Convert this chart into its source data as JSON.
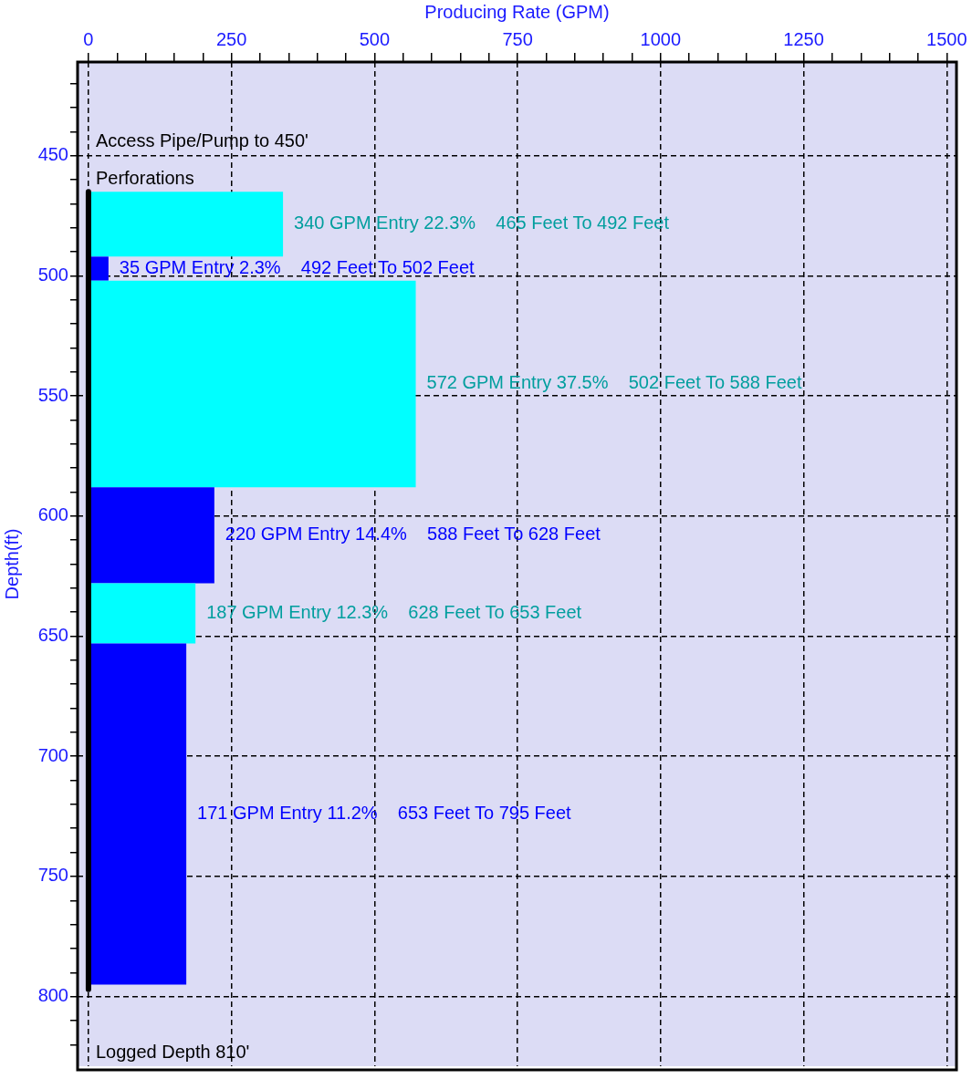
{
  "chart_data": {
    "type": "histogram",
    "orientation": "horizontal",
    "xlabel": "Producing Rate (GPM)",
    "ylabel": "Depth(ft)",
    "xlim": [
      -19,
      1517
    ],
    "ylim": [
      829,
      411
    ],
    "xticks": [
      0,
      {
        "value": 50,
        "label": null
      },
      {
        "value": 100,
        "label": null
      },
      {
        "value": 150,
        "label": null
      },
      {
        "value": 200,
        "label": null
      },
      250,
      {
        "value": 300,
        "label": null
      },
      {
        "value": 350,
        "label": null
      },
      {
        "value": 400,
        "label": null
      },
      {
        "value": 450,
        "label": null
      },
      500,
      {
        "value": 550,
        "label": null
      },
      {
        "value": 600,
        "label": null
      },
      {
        "value": 650,
        "label": null
      },
      {
        "value": 700,
        "label": null
      },
      750,
      {
        "value": 800,
        "label": null
      },
      {
        "value": 850,
        "label": null
      },
      {
        "value": 900,
        "label": null
      },
      {
        "value": 950,
        "label": null
      },
      1000,
      {
        "value": 1050,
        "label": null
      },
      {
        "value": 1100,
        "label": null
      },
      {
        "value": 1150,
        "label": null
      },
      {
        "value": 1200,
        "label": null
      },
      1250,
      {
        "value": 1300,
        "label": null
      },
      {
        "value": 1350,
        "label": null
      },
      {
        "value": 1400,
        "label": null
      },
      {
        "value": 1450,
        "label": null
      },
      1500
    ],
    "yticks": [
      {
        "value": 420,
        "label": null
      },
      {
        "value": 430,
        "label": null
      },
      {
        "value": 440,
        "label": null
      },
      450,
      {
        "value": 460,
        "label": null
      },
      {
        "value": 470,
        "label": null
      },
      {
        "value": 480,
        "label": null
      },
      {
        "value": 490,
        "label": null
      },
      500,
      {
        "value": 510,
        "label": null
      },
      {
        "value": 520,
        "label": null
      },
      {
        "value": 530,
        "label": null
      },
      {
        "value": 540,
        "label": null
      },
      550,
      {
        "value": 560,
        "label": null
      },
      {
        "value": 570,
        "label": null
      },
      {
        "value": 580,
        "label": null
      },
      {
        "value": 590,
        "label": null
      },
      600,
      {
        "value": 610,
        "label": null
      },
      {
        "value": 620,
        "label": null
      },
      {
        "value": 630,
        "label": null
      },
      {
        "value": 640,
        "label": null
      },
      650,
      {
        "value": 660,
        "label": null
      },
      {
        "value": 670,
        "label": null
      },
      {
        "value": 680,
        "label": null
      },
      {
        "value": 690,
        "label": null
      },
      700,
      {
        "value": 710,
        "label": null
      },
      {
        "value": 720,
        "label": null
      },
      {
        "value": 730,
        "label": null
      },
      {
        "value": 740,
        "label": null
      },
      750,
      {
        "value": 760,
        "label": null
      },
      {
        "value": 770,
        "label": null
      },
      {
        "value": 780,
        "label": null
      },
      {
        "value": 790,
        "label": null
      },
      800,
      {
        "value": 810,
        "label": null
      },
      {
        "value": 820,
        "label": null
      }
    ],
    "grid": true,
    "legend": false,
    "series": [
      {
        "type": "histogram",
        "bins": [
          465,
          492,
          502,
          588,
          628,
          653,
          795
        ],
        "values": [
          340,
          35,
          572,
          220,
          187,
          171
        ],
        "colors": [
          "#00ffff",
          "#0000ff",
          "#00ffff",
          "#0000ff",
          "#00ffff",
          "#0000ff"
        ],
        "value_labels": [
          "340 GPM Entry 22.3%    465 Feet To 492 Feet",
          "35 GPM Entry 2.3%    492 Feet To 502 Feet",
          "572 GPM Entry 37.5%    502 Feet To 588 Feet",
          "220 GPM Entry 14.4%    588 Feet To 628 Feet",
          "187 GPM Entry 12.3%    628 Feet To 653 Feet",
          "171 GPM Entry 11.2%    653 Feet To 795 Feet"
        ]
      },
      {
        "type": "line",
        "x": [
          465,
          797
        ],
        "values": [
          0,
          0
        ],
        "color": "#000000"
      }
    ],
    "annotations": [
      "Access Pipe/Pump to 450'",
      {
        "text": "Perforations",
        "x": 0,
        "y": 465
      },
      "Logged Depth 810'"
    ]
  }
}
